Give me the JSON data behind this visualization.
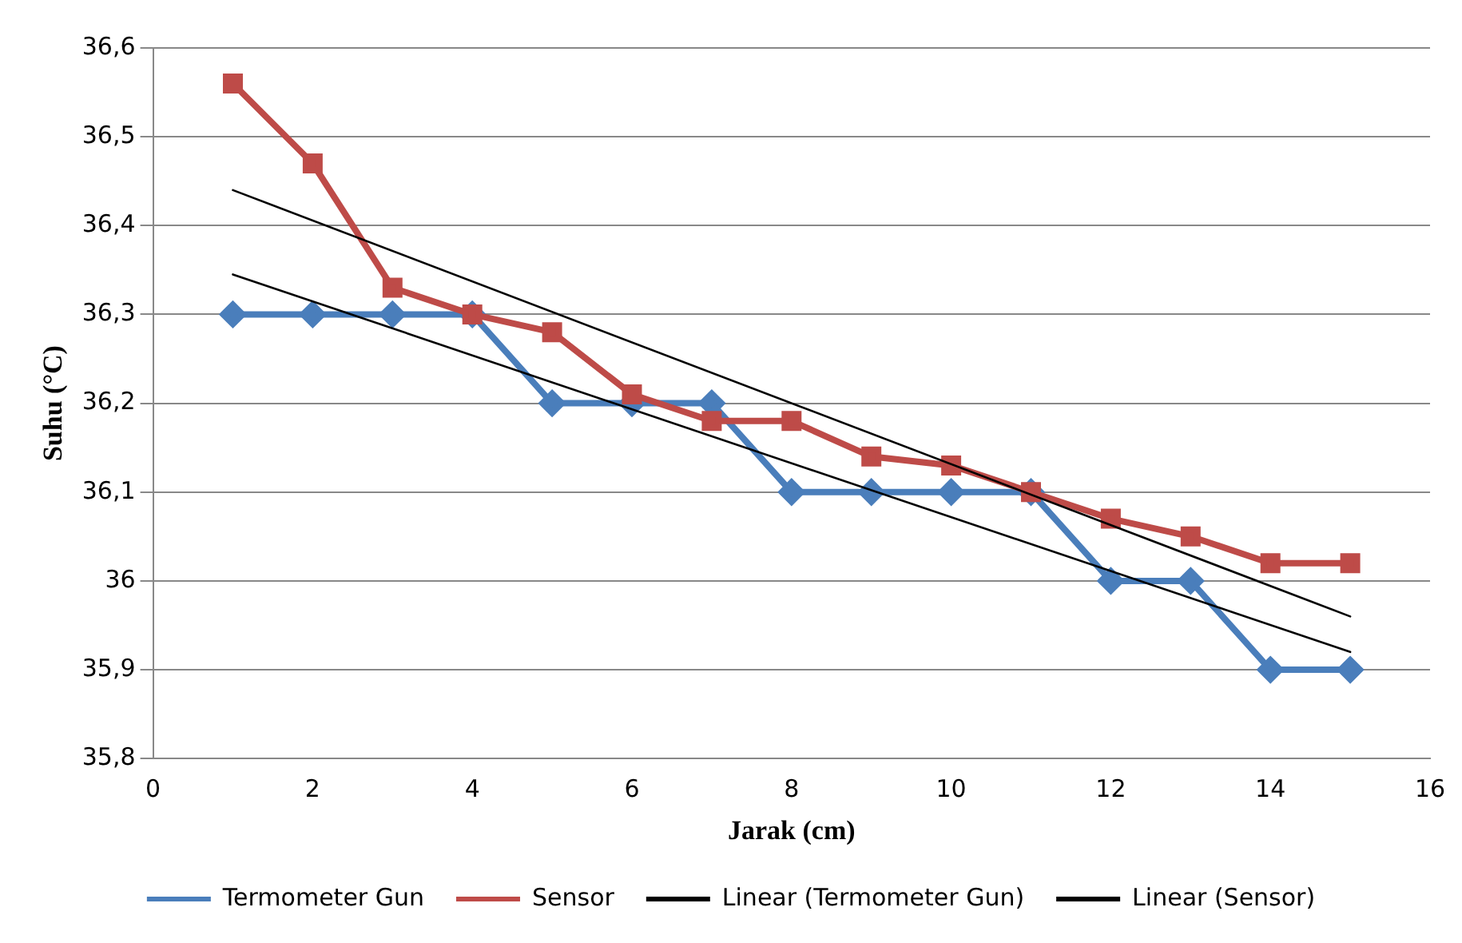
{
  "chart_data": {
    "type": "line",
    "xlabel": "Jarak (cm)",
    "ylabel": "Suhu (°C)",
    "xlim": [
      0,
      16
    ],
    "xticks": [
      0,
      2,
      4,
      6,
      8,
      10,
      12,
      14,
      16
    ],
    "ylim": [
      35.8,
      36.6
    ],
    "yticks": [
      {
        "value": 35.8,
        "label": "35,8"
      },
      {
        "value": 35.9,
        "label": "35,9"
      },
      36,
      {
        "value": 36.1,
        "label": "36,1"
      },
      {
        "value": 36.2,
        "label": "36,2"
      },
      {
        "value": 36.3,
        "label": "36,3"
      },
      {
        "value": 36.4,
        "label": "36,4"
      },
      {
        "value": 36.5,
        "label": "36,5"
      },
      {
        "value": 36.6,
        "label": "36,6"
      }
    ],
    "grid": "y",
    "legend": "bottom",
    "series": [
      {
        "name": "Termometer Gun",
        "color": "#4a7ebb",
        "marker": "diamond",
        "x": [
          1,
          2,
          3,
          4,
          5,
          6,
          7,
          8,
          9,
          10,
          11,
          12,
          13,
          14,
          15
        ],
        "values": [
          36.3,
          36.3,
          36.3,
          36.3,
          36.2,
          36.2,
          36.2,
          36.1,
          36.1,
          36.1,
          36.1,
          36.0,
          36.0,
          35.9,
          35.9
        ]
      },
      {
        "name": "Sensor",
        "color": "#be4b48",
        "marker": "square",
        "x": [
          1,
          2,
          3,
          4,
          5,
          6,
          7,
          8,
          9,
          10,
          11,
          12,
          13,
          14,
          15
        ],
        "values": [
          36.56,
          36.47,
          36.33,
          36.3,
          36.28,
          36.21,
          36.18,
          36.18,
          36.14,
          36.13,
          36.1,
          36.07,
          36.05,
          36.02,
          36.02
        ]
      },
      {
        "name": "Linear (Termometer Gun)",
        "color": "#000000",
        "marker": "none",
        "x": [
          1,
          15
        ],
        "values": [
          36.345,
          35.92
        ]
      },
      {
        "name": "Linear (Sensor)",
        "color": "#000000",
        "marker": "none",
        "x": [
          1,
          15
        ],
        "values": [
          36.44,
          35.96
        ]
      }
    ]
  }
}
